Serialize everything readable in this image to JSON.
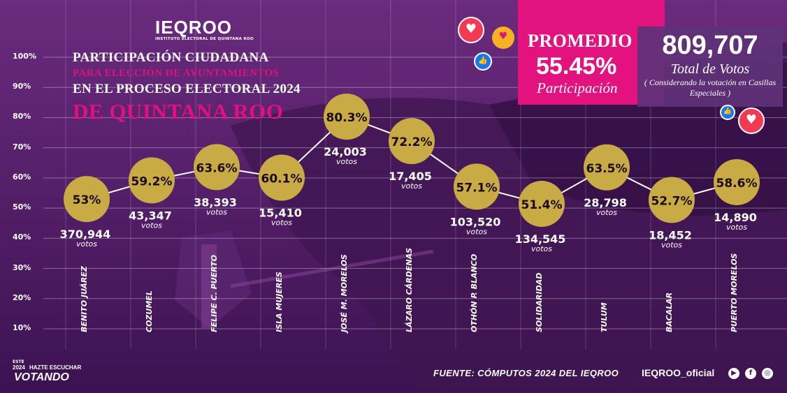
{
  "header": {
    "logo": "IEQROO",
    "logo_subtitle": "INSTITUTO ELECTORAL DE QUINTANA ROO",
    "title_line1": "PARTICIPACIÓN CIUDADANA",
    "title_line2": "PARA ELECCIÓN DE AYUNTAMIENTOS",
    "title_line3": "EN EL PROCESO ELECTORAL 2024",
    "title_line4": "DE QUINTANA ROO"
  },
  "promedio": {
    "label": "PROMEDIO",
    "value": "55.45%",
    "caption": "Participación"
  },
  "total": {
    "value": "809,707",
    "label": "Total de Votos",
    "note": "( Considerando la votación en Casillas Especiales )"
  },
  "footer": {
    "source": "FUENTE: CÓMPUTOS 2024 DEL IEQROO",
    "handle": "IEQROO_oficial",
    "campaign_top": "ESTE",
    "campaign_year": "2024",
    "campaign_slogan": "HAZTE ESCUCHAR",
    "campaign_word": "VOTANDO"
  },
  "colors": {
    "bubble": "#c9ab45",
    "accent_pink": "#e2127f",
    "background": "#4a1a60",
    "facebook_blue": "#1877f2",
    "facebook_red": "#f23a53"
  },
  "icons": [
    "heart-reaction-icon",
    "care-reaction-icon",
    "like-reaction-icon",
    "youtube-icon",
    "facebook-icon",
    "instagram-icon"
  ],
  "chart_data": {
    "type": "line",
    "title": "PARTICIPACIÓN CIUDADANA PARA ELECCIÓN DE AYUNTAMIENTOS EN EL PROCESO ELECTORAL 2024 DE QUINTANA ROO",
    "ylim": [
      10,
      100
    ],
    "yticks": [
      "100%",
      "90%",
      "80%",
      "70%",
      "60%",
      "50%",
      "40%",
      "30%",
      "20%",
      "10%"
    ],
    "grid": true,
    "vote_unit": "votos",
    "categories": [
      "BENITO JUÁREZ",
      "COZUMEL",
      "FELIPE C. PUERTO",
      "ISLA MUJERES",
      "JOSÉ M. MORELOS",
      "LÁZARO CÁRDENAS",
      "OTHÓN P. BLANCO",
      "SOLIDARIDAD",
      "TULUM",
      "BACALAR",
      "PUERTO MORELOS"
    ],
    "values": [
      53,
      59.2,
      63.6,
      60.1,
      80.3,
      72.2,
      57.1,
      51.4,
      63.5,
      52.7,
      58.6
    ],
    "value_labels": [
      "53%",
      "59.2%",
      "63.6%",
      "60.1%",
      "80.3%",
      "72.2%",
      "57.1%",
      "51.4%",
      "63.5%",
      "52.7%",
      "58.6%"
    ],
    "votes": [
      "370,944",
      "43,347",
      "38,393",
      "15,410",
      "24,003",
      "17,405",
      "103,520",
      "134,545",
      "28,798",
      "18,452",
      "14,890"
    ]
  }
}
